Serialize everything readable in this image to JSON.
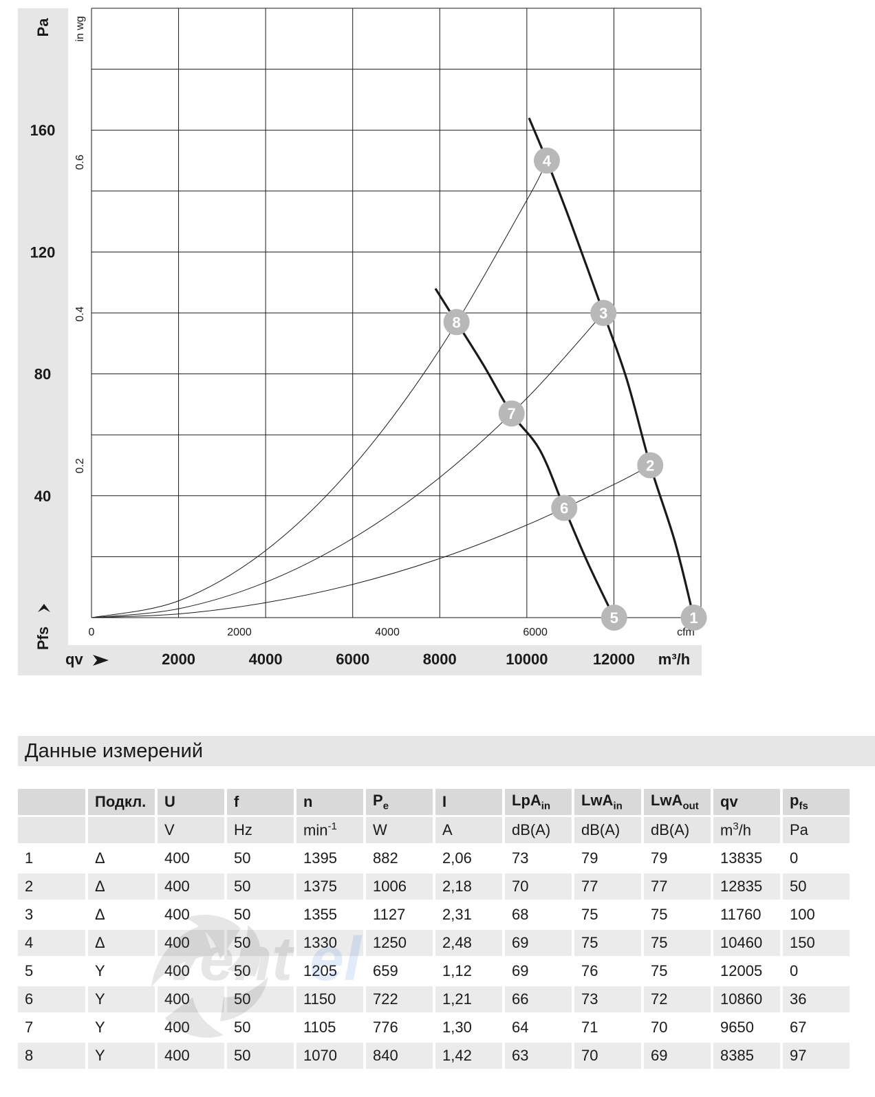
{
  "chart_data": {
    "type": "line",
    "y_unit_left": "Pa",
    "y_unit_inner": "in wg",
    "y_axis_symbol": "Pfs",
    "x_axis_symbol": "qv",
    "x_unit": "m³/h",
    "x_unit_inner": "cfm",
    "xlim": [
      0,
      14000
    ],
    "ylim": [
      0,
      200
    ],
    "grid": true,
    "x_ticks": [
      "2000",
      "4000",
      "6000",
      "8000",
      "10000",
      "12000"
    ],
    "y_ticks": [
      "40",
      "80",
      "120",
      "160"
    ],
    "x_ticks_inner": [
      "0",
      "2000",
      "4000",
      "6000"
    ],
    "y_ticks_inner": [
      "0.2",
      "0.4",
      "0.6"
    ],
    "series": [
      {
        "kind": "fan_curve",
        "x": [
          10050,
          10460,
          11000,
          11760,
          12300,
          12835,
          13400,
          13835
        ],
        "y": [
          164,
          150,
          130,
          100,
          78,
          50,
          25,
          0
        ]
      },
      {
        "kind": "fan_curve",
        "x": [
          7900,
          8385,
          9000,
          9650,
          10300,
          10860,
          11400,
          12005
        ],
        "y": [
          108,
          97,
          83,
          67,
          55,
          36,
          18,
          0
        ]
      },
      {
        "kind": "system_curve",
        "x": [
          0,
          2000,
          4000,
          6000,
          8000,
          10000,
          10460
        ],
        "y": [
          0,
          5.5,
          22,
          49.5,
          88,
          137,
          150
        ]
      },
      {
        "kind": "system_curve",
        "x": [
          0,
          2000,
          4000,
          6000,
          8000,
          10000,
          11760
        ],
        "y": [
          0,
          2.9,
          11.6,
          26,
          46,
          72,
          100
        ]
      },
      {
        "kind": "system_curve",
        "x": [
          0,
          2000,
          4000,
          6000,
          8000,
          10000,
          12000,
          12835
        ],
        "y": [
          0,
          1.2,
          4.9,
          10.9,
          19.4,
          30.4,
          43.7,
          50
        ]
      }
    ],
    "markers": [
      {
        "label": "1",
        "x": 13835,
        "y": 0
      },
      {
        "label": "2",
        "x": 12835,
        "y": 50
      },
      {
        "label": "3",
        "x": 11760,
        "y": 100
      },
      {
        "label": "4",
        "x": 10460,
        "y": 150
      },
      {
        "label": "5",
        "x": 12005,
        "y": 0
      },
      {
        "label": "6",
        "x": 10860,
        "y": 36
      },
      {
        "label": "7",
        "x": 9650,
        "y": 67
      },
      {
        "label": "8",
        "x": 8385,
        "y": 97
      }
    ]
  },
  "table": {
    "title": "Данные измерений",
    "headers": [
      {
        "main": "",
        "sub": ""
      },
      {
        "main": "Подкл.",
        "sub": ""
      },
      {
        "main": "U",
        "sub": ""
      },
      {
        "main": "f",
        "sub": ""
      },
      {
        "main": "n",
        "sub": ""
      },
      {
        "main": "P",
        "sub": "e"
      },
      {
        "main": "I",
        "sub": ""
      },
      {
        "main": "LpA",
        "sub": "in"
      },
      {
        "main": "LwA",
        "sub": "in"
      },
      {
        "main": "LwA",
        "sub": "out"
      },
      {
        "main": "qv",
        "sub": ""
      },
      {
        "main": "p",
        "sub": "fs"
      }
    ],
    "units": [
      "",
      "",
      "V",
      "Hz",
      "min-1",
      "W",
      "A",
      "dB(A)",
      "dB(A)",
      "dB(A)",
      "m3/h",
      "Pa"
    ],
    "rows": [
      [
        "1",
        "Δ",
        "400",
        "50",
        "1395",
        "882",
        "2,06",
        "73",
        "79",
        "79",
        "13835",
        "0"
      ],
      [
        "2",
        "Δ",
        "400",
        "50",
        "1375",
        "1006",
        "2,18",
        "70",
        "77",
        "77",
        "12835",
        "50"
      ],
      [
        "3",
        "Δ",
        "400",
        "50",
        "1355",
        "1127",
        "2,31",
        "68",
        "75",
        "75",
        "11760",
        "100"
      ],
      [
        "4",
        "Δ",
        "400",
        "50",
        "1330",
        "1250",
        "2,48",
        "69",
        "75",
        "75",
        "10460",
        "150"
      ],
      [
        "5",
        "Y",
        "400",
        "50",
        "1205",
        "659",
        "1,12",
        "69",
        "76",
        "75",
        "12005",
        "0"
      ],
      [
        "6",
        "Y",
        "400",
        "50",
        "1150",
        "722",
        "1,21",
        "66",
        "73",
        "72",
        "10860",
        "36"
      ],
      [
        "7",
        "Y",
        "400",
        "50",
        "1105",
        "776",
        "1,30",
        "64",
        "71",
        "70",
        "9650",
        "67"
      ],
      [
        "8",
        "Y",
        "400",
        "50",
        "1070",
        "840",
        "1,42",
        "63",
        "70",
        "69",
        "8385",
        "97"
      ]
    ]
  },
  "colors": {
    "band": "#e6e6e6",
    "grid": "#1a1a1a",
    "marker": "#b8b8b8",
    "watermark_blue": "#2b6fd6"
  }
}
